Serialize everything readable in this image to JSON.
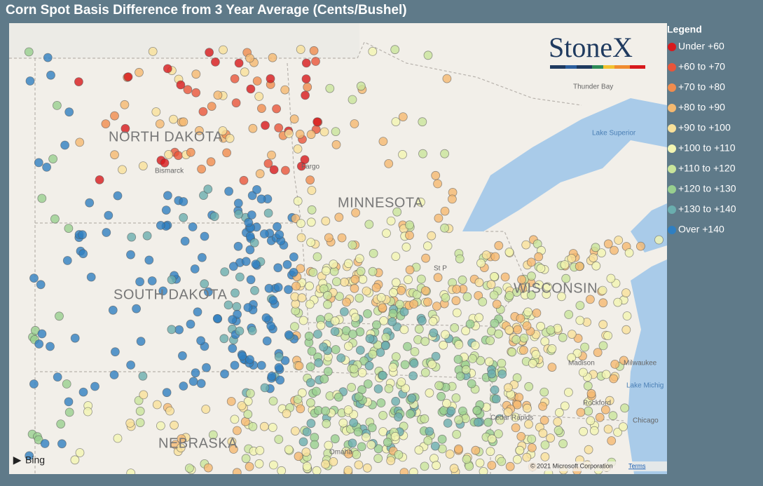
{
  "header": {
    "title": "Corn Spot Basis Difference from 3 Year Average (Cents/Bushel)"
  },
  "legend": {
    "title": "Legend",
    "items": [
      {
        "label": "Under +60",
        "color": "#d7191c"
      },
      {
        "label": "+60 to +70",
        "color": "#e8553a"
      },
      {
        "label": "+70 to +80",
        "color": "#f08c4e"
      },
      {
        "label": "+80 to +90",
        "color": "#f5b970"
      },
      {
        "label": "+90 to +100",
        "color": "#f9e19a"
      },
      {
        "label": "+100 to +110",
        "color": "#f3f5b2"
      },
      {
        "label": "+110 to +120",
        "color": "#c9e59b"
      },
      {
        "label": "+120 to +130",
        "color": "#98cf8f"
      },
      {
        "label": "+130 to +140",
        "color": "#6aaeae"
      },
      {
        "label": "Over +140",
        "color": "#2f7fc1"
      }
    ]
  },
  "map": {
    "logo": "StoneX",
    "states": [
      "NORTH DAKOTA",
      "MINNESOTA",
      "SOUTH DAKOTA",
      "WISCONSIN",
      "NEBRASKA"
    ],
    "places": [
      "Bismarck",
      "Fargo",
      "Thunder Bay",
      "Lake Superior",
      "St P",
      "Madison",
      "Milwaukee",
      "Lake Michig",
      "Rockford",
      "Cedar Rapids",
      "Chicago",
      "Omaha"
    ],
    "provider": "Bing",
    "attribution": "© 2021 Microsoft Corporation",
    "terms": "Terms"
  }
}
